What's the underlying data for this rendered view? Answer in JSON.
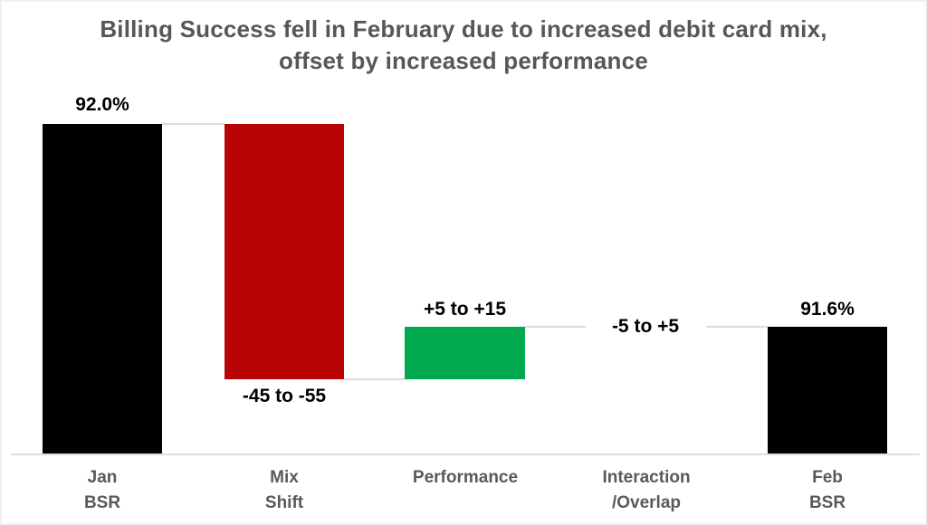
{
  "title": {
    "line1": "Billing Success fell in February due to increased debit card mix,",
    "line2": "offset by increased performance"
  },
  "colors": {
    "total_bar": "#000000",
    "decrease_bar": "#B80404",
    "increase_bar": "#00A84E",
    "title_text": "#575757",
    "axis_label_text": "#595959",
    "data_label_text": "#000000",
    "connector_line": "#DCDCDC",
    "axis_line": "#DEDEDE",
    "background": "#FFFFFF"
  },
  "bars": [
    {
      "id": "jan-bsr",
      "data_label": "92.0%",
      "axis_label_line1": "Jan",
      "axis_label_line2": "BSR",
      "color": "#000000"
    },
    {
      "id": "mix-shift",
      "data_label": "-45 to -55",
      "axis_label_line1": "Mix",
      "axis_label_line2": "Shift",
      "color": "#B80404"
    },
    {
      "id": "performance",
      "data_label": "+5 to +15",
      "axis_label_line1": "Performance",
      "axis_label_line2": "",
      "color": "#00A84E"
    },
    {
      "id": "interaction-overlap",
      "data_label": "-5 to +5",
      "axis_label_line1": "Interaction",
      "axis_label_line2": "/Overlap",
      "color": ""
    },
    {
      "id": "feb-bsr",
      "data_label": "91.6%",
      "axis_label_line1": "Feb",
      "axis_label_line2": "BSR",
      "color": "#000000"
    }
  ],
  "chart_data": {
    "type": "bar",
    "subtype": "waterfall",
    "title": "Billing Success fell in February due to increased debit card mix, offset by increased performance",
    "categories": [
      "Jan BSR",
      "Mix Shift",
      "Performance",
      "Interaction /Overlap",
      "Feb BSR"
    ],
    "series": [
      {
        "name": "Jan BSR",
        "value_label": "92.0%",
        "role": "total-start",
        "bar_color": "#000000",
        "label_position": "above-bar"
      },
      {
        "name": "Mix Shift",
        "value_label": "-45 to -55",
        "role": "decrease",
        "bar_color": "#B80404",
        "label_position": "below-bar"
      },
      {
        "name": "Performance",
        "value_label": "+5 to +15",
        "role": "increase",
        "bar_color": "#00A84E",
        "label_position": "above-bar"
      },
      {
        "name": "Interaction/Overlap",
        "value_label": "-5 to +5",
        "role": "neutral-no-bar",
        "bar_color": "",
        "label_position": "on-connector-line"
      },
      {
        "name": "Feb BSR",
        "value_label": "91.6%",
        "role": "total-end",
        "bar_color": "#000000",
        "label_position": "above-bar"
      }
    ],
    "xlabel": "",
    "ylabel": "",
    "grid": false,
    "legend": false,
    "axis_line": "bottom-only"
  }
}
